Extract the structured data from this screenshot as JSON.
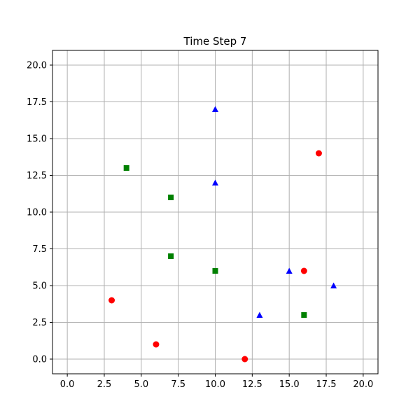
{
  "chart_data": {
    "type": "scatter",
    "title": "Time Step 7",
    "xlabel": "",
    "ylabel": "",
    "xlim": [
      -1,
      21
    ],
    "ylim": [
      -1,
      21
    ],
    "grid": true,
    "xticks": [
      0.0,
      2.5,
      5.0,
      7.5,
      10.0,
      12.5,
      15.0,
      17.5,
      20.0
    ],
    "yticks": [
      0.0,
      2.5,
      5.0,
      7.5,
      10.0,
      12.5,
      15.0,
      17.5,
      20.0
    ],
    "series": [
      {
        "marker": "circle",
        "color": "#ff0000",
        "points": [
          [
            3,
            4
          ],
          [
            6,
            1
          ],
          [
            12,
            0
          ],
          [
            16,
            6
          ],
          [
            17,
            14
          ]
        ]
      },
      {
        "marker": "square",
        "color": "#008000",
        "points": [
          [
            4,
            13
          ],
          [
            7,
            11
          ],
          [
            7,
            7
          ],
          [
            10,
            6
          ],
          [
            16,
            3
          ]
        ]
      },
      {
        "marker": "triangle",
        "color": "#0000ff",
        "points": [
          [
            10,
            17
          ],
          [
            10,
            12
          ],
          [
            13,
            3
          ],
          [
            15,
            6
          ],
          [
            18,
            5
          ]
        ]
      }
    ]
  }
}
